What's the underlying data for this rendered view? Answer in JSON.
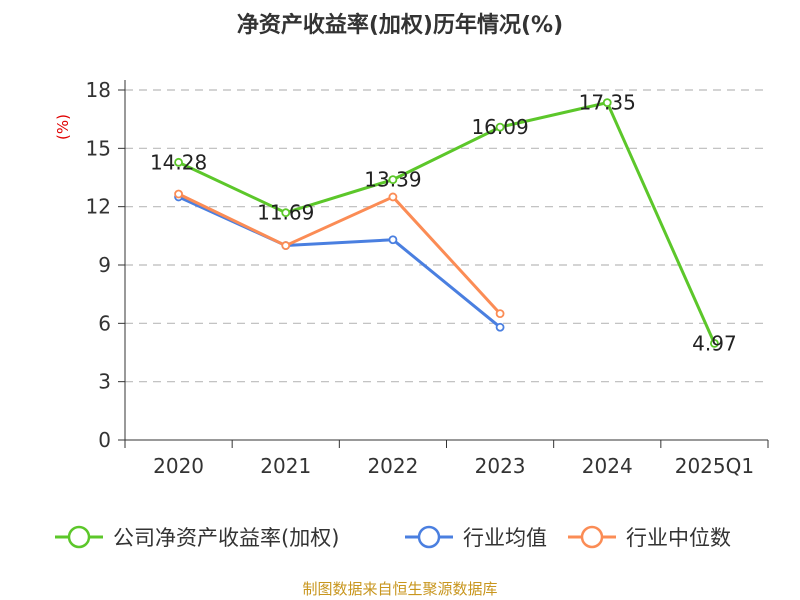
{
  "chart_data": {
    "type": "line",
    "title": "净资产收益率(加权)历年情况(%)",
    "ylabel": "(%)",
    "xlabel": "",
    "categories": [
      "2020",
      "2021",
      "2022",
      "2023",
      "2024",
      "2025Q1"
    ],
    "ylim": [
      0,
      18
    ],
    "yticks": [
      0,
      3,
      6,
      9,
      12,
      15,
      18
    ],
    "grid": true,
    "legend_position": "bottom",
    "series": [
      {
        "name": "公司净资产收益率(加权)",
        "color": "#5cc72a",
        "values": [
          14.28,
          11.69,
          13.39,
          16.09,
          17.35,
          4.97
        ],
        "labels": [
          "14.28",
          "11.69",
          "13.39",
          "16.09",
          "17.35",
          "4.97"
        ]
      },
      {
        "name": "行业均值",
        "color": "#4a7fe0",
        "values": [
          12.5,
          10.0,
          10.3,
          5.8,
          null,
          null
        ]
      },
      {
        "name": "行业中位数",
        "color": "#fb8c55",
        "values": [
          12.65,
          10.0,
          12.5,
          6.5,
          null,
          null
        ]
      }
    ],
    "source": "制图数据来自恒生聚源数据库"
  }
}
